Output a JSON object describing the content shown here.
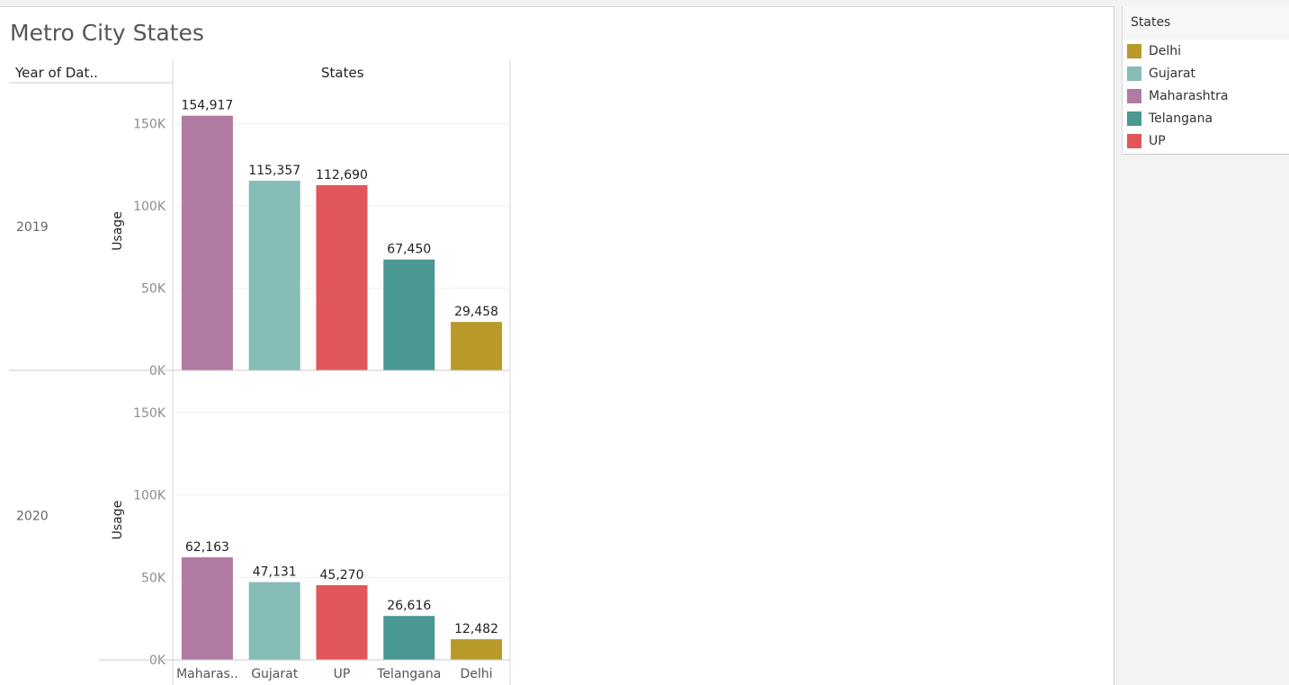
{
  "title": "Metro City States",
  "row_header": "Year of Dat..",
  "column_header": "States",
  "legend": {
    "title": "States",
    "items": [
      {
        "label": "Delhi",
        "color": "#b8992a"
      },
      {
        "label": "Gujarat",
        "color": "#85bcb6"
      },
      {
        "label": "Maharashtra",
        "color": "#b07aa1"
      },
      {
        "label": "Telangana",
        "color": "#499894"
      },
      {
        "label": "UP",
        "color": "#e15759"
      }
    ]
  },
  "chart_data": {
    "type": "bar",
    "ylabel": "Usage",
    "ylim": [
      0,
      175000
    ],
    "yticks": [
      0,
      50000,
      100000,
      150000
    ],
    "ytick_labels": [
      "0K",
      "50K",
      "100K",
      "150K"
    ],
    "categories": [
      "Maharas..",
      "Gujarat",
      "UP",
      "Telangana",
      "Delhi"
    ],
    "category_colors": [
      "#b07aa1",
      "#85bcb6",
      "#e15759",
      "#499894",
      "#b8992a"
    ],
    "panels": [
      {
        "row_label": "2019",
        "values": [
          154917,
          115357,
          112690,
          67450,
          29458
        ],
        "value_labels": [
          "154,917",
          "115,357",
          "112,690",
          "67,450",
          "29,458"
        ]
      },
      {
        "row_label": "2020",
        "values": [
          62163,
          47131,
          45270,
          26616,
          12482
        ],
        "value_labels": [
          "62,163",
          "47,131",
          "45,270",
          "26,616",
          "12,482"
        ]
      }
    ]
  }
}
